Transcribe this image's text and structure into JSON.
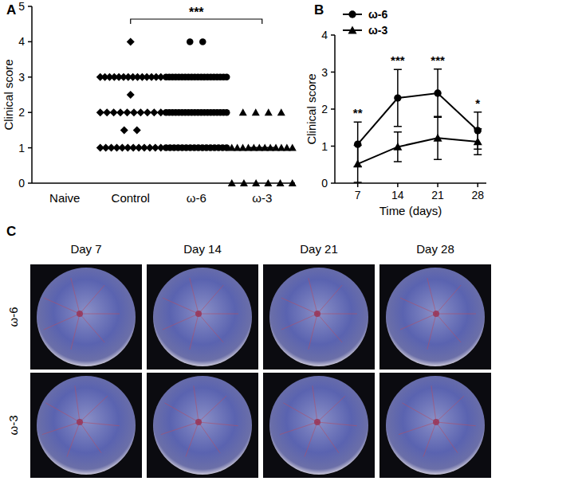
{
  "chart_data": [
    {
      "panel_label": "A",
      "type": "dot",
      "categories": [
        "Naive",
        "Control",
        "ω-6",
        "ω-3"
      ],
      "values": [
        [],
        [
          4,
          3,
          3,
          3,
          3,
          3,
          3,
          3,
          3,
          3,
          3,
          3,
          3,
          3,
          3,
          2.5,
          2,
          2,
          2,
          2,
          2,
          2,
          2,
          2,
          2,
          2,
          1.5,
          1.5,
          1,
          1,
          1,
          1,
          1,
          1,
          1,
          1,
          1,
          1,
          1,
          1
        ],
        [
          4,
          4,
          3,
          3,
          3,
          3,
          3,
          3,
          3,
          3,
          3,
          3,
          3,
          3,
          3,
          3,
          3,
          3,
          3,
          3,
          3,
          3,
          2,
          2,
          2,
          2,
          2,
          2,
          2,
          2,
          2,
          2,
          2,
          2,
          2,
          2,
          2,
          2,
          2,
          2,
          2,
          2,
          1,
          1,
          1,
          1,
          1,
          1,
          1,
          1,
          1,
          1,
          1,
          1,
          1,
          1,
          1,
          1
        ],
        [
          2,
          2,
          2,
          2,
          1,
          1,
          1,
          1,
          1,
          1,
          1,
          1,
          1,
          1,
          1,
          1,
          0,
          0,
          0,
          0,
          0,
          0
        ]
      ],
      "marker": [
        null,
        "diamond",
        "circle",
        "triangle"
      ],
      "medians": [
        null,
        null,
        null,
        1
      ],
      "color": "#000000",
      "ylabel": "Clinical score",
      "ylim": [
        0,
        5
      ],
      "yticks": [
        0,
        1,
        2,
        3,
        4,
        5
      ],
      "annotations": [
        {
          "text": "***",
          "from": "Control",
          "to": "ω-3"
        }
      ]
    },
    {
      "panel_label": "B",
      "type": "line",
      "x": [
        7,
        14,
        21,
        28
      ],
      "xlabel": "Time (days)",
      "ylabel": "Clinical score",
      "xlim": [
        3,
        29.5
      ],
      "xticks": [
        7,
        14,
        21,
        28
      ],
      "ylim": [
        0,
        4
      ],
      "yticks": [
        0,
        1,
        2,
        3,
        4
      ],
      "legend": "top-left",
      "series": [
        {
          "name": "ω-6",
          "color": "#000000",
          "marker": "circle",
          "values": [
            1.05,
            2.3,
            2.43,
            1.42
          ],
          "errors": [
            0.6,
            0.77,
            0.65,
            0.5
          ]
        },
        {
          "name": "ω-3",
          "color": "#000000",
          "marker": "triangle",
          "values": [
            0.52,
            0.98,
            1.22,
            1.12
          ],
          "errors": [
            0.5,
            0.4,
            0.58,
            0.35
          ]
        }
      ],
      "annotations": [
        {
          "x": 7,
          "text": "**"
        },
        {
          "x": 14,
          "text": "***"
        },
        {
          "x": 21,
          "text": "***"
        },
        {
          "x": 28,
          "text": "*"
        }
      ]
    }
  ],
  "panel_c": {
    "panel_label": "C",
    "columns": [
      "Day 7",
      "Day 14",
      "Day 21",
      "Day 28"
    ],
    "rows": [
      "ω-6",
      "ω-3"
    ]
  }
}
